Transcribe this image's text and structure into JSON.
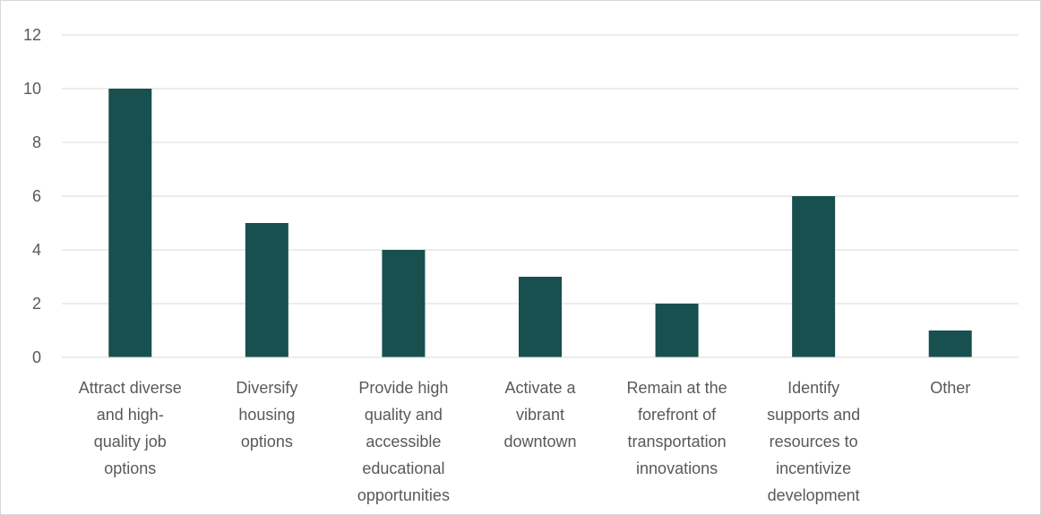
{
  "chart_data": {
    "type": "bar",
    "title": "",
    "xlabel": "",
    "ylabel": "",
    "ylim": [
      0,
      12
    ],
    "y_ticks": [
      0,
      2,
      4,
      6,
      8,
      10,
      12
    ],
    "grid": true,
    "legend": "none",
    "bar_color": "#17504F",
    "categories": [
      [
        "Attract diverse",
        "and high-",
        "quality job",
        "options"
      ],
      [
        "Diversify",
        "housing",
        "options"
      ],
      [
        "Provide high",
        "quality and",
        "accessible",
        "educational",
        "opportunities"
      ],
      [
        "Activate a",
        "vibrant",
        "downtown"
      ],
      [
        "Remain at the",
        "forefront of",
        "transportation",
        "innovations"
      ],
      [
        "Identify",
        "supports and",
        "resources to",
        "incentivize",
        "development"
      ],
      [
        "Other"
      ]
    ],
    "values": [
      10,
      5,
      4,
      3,
      2,
      6,
      1
    ]
  }
}
